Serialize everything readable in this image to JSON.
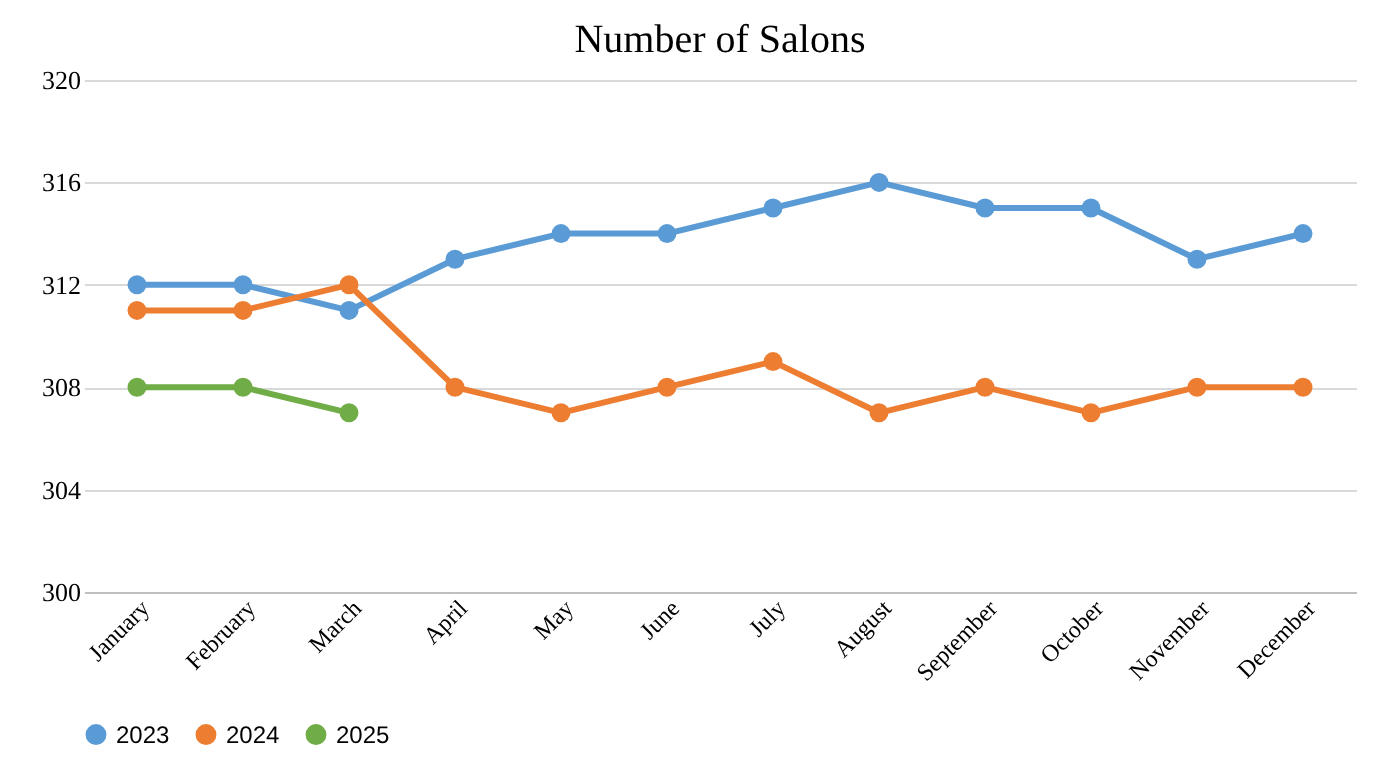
{
  "chart_data": {
    "type": "line",
    "title": "Number of Salons",
    "categories": [
      "January",
      "February",
      "March",
      "April",
      "May",
      "June",
      "July",
      "August",
      "September",
      "October",
      "November",
      "December"
    ],
    "series": [
      {
        "name": "2023",
        "color": "#5b9bd5",
        "values": [
          312,
          312,
          311,
          313,
          314,
          314,
          315,
          316,
          315,
          315,
          313,
          314
        ]
      },
      {
        "name": "2024",
        "color": "#ed7d31",
        "values": [
          311,
          311,
          312,
          308,
          307,
          308,
          309,
          307,
          308,
          307,
          308,
          308
        ]
      },
      {
        "name": "2025",
        "color": "#70ad47",
        "values": [
          308,
          308,
          307,
          null,
          null,
          null,
          null,
          null,
          null,
          null,
          null,
          null
        ]
      }
    ],
    "ylim": [
      300,
      320
    ],
    "yticks": [
      300,
      304,
      308,
      312,
      316,
      320
    ],
    "grid": "y",
    "legend": "bottom",
    "marker": "circle",
    "line_style": "solid"
  }
}
